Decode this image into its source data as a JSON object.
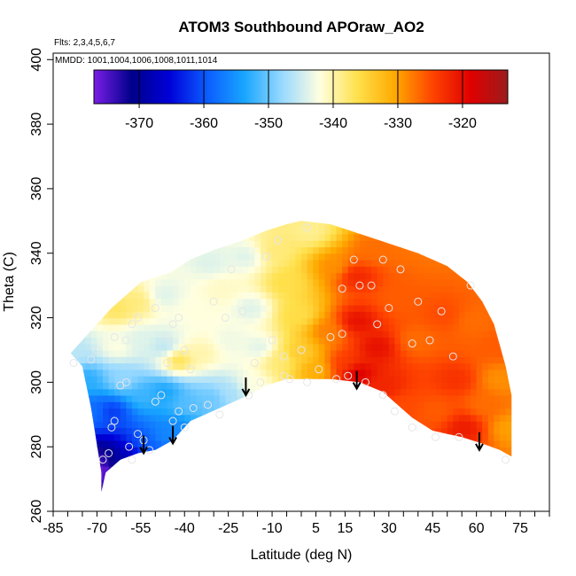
{
  "chart_data": {
    "type": "heatmap",
    "title": "ATOM3 Southbound APOraw_AO2",
    "flights_note": "Flts: 2,3,4,5,6,7",
    "dates_note": "MMDD: 1001,1004,1006,1008,1011,1014",
    "xlabel": "Latitude (deg N)",
    "ylabel": "Theta (C)",
    "xlim": [
      -85,
      85
    ],
    "ylim": [
      260,
      402
    ],
    "x_ticks": [
      -85,
      -70,
      -55,
      -40,
      -25,
      -10,
      5,
      15,
      30,
      45,
      60,
      75
    ],
    "x_minor_step": 5,
    "y_ticks": [
      260,
      280,
      300,
      320,
      340,
      360,
      380,
      400
    ],
    "colorbar": {
      "range": [
        -377,
        -313
      ],
      "ticks": [
        -370,
        -360,
        -350,
        -340,
        -330,
        -320
      ],
      "colors": [
        "#7a1ee6",
        "#00008b",
        "#0000d8",
        "#0b5cff",
        "#19a6ff",
        "#99d9ff",
        "#ffffe0",
        "#ffe14d",
        "#ffaa00",
        "#ff4400",
        "#e00000",
        "#9c1c1c"
      ]
    },
    "field_boundary": {
      "upper": [
        [
          -68.5,
          272
        ],
        [
          -72,
          292
        ],
        [
          -75,
          305
        ],
        [
          -79,
          309
        ],
        [
          -75,
          313
        ],
        [
          -70,
          318
        ],
        [
          -65,
          323
        ],
        [
          -60,
          327
        ],
        [
          -55,
          331
        ],
        [
          -45,
          334
        ],
        [
          -38,
          338
        ],
        [
          -30,
          341
        ],
        [
          -20,
          344
        ],
        [
          -12,
          347
        ],
        [
          -5,
          349
        ],
        [
          0,
          350
        ],
        [
          10,
          349
        ],
        [
          20,
          346
        ],
        [
          30,
          343
        ],
        [
          40,
          340
        ],
        [
          50,
          336
        ],
        [
          57,
          331
        ],
        [
          62,
          325
        ],
        [
          66,
          318
        ],
        [
          70,
          305
        ],
        [
          72,
          296
        ],
        [
          72,
          277
        ]
      ],
      "lower": [
        [
          -68.5,
          266
        ],
        [
          -67,
          272
        ],
        [
          -62,
          276
        ],
        [
          -56,
          278
        ],
        [
          -50,
          279
        ],
        [
          -44,
          282
        ],
        [
          -38,
          288
        ],
        [
          -28,
          292
        ],
        [
          -18,
          296
        ],
        [
          -12,
          299
        ],
        [
          -5,
          301
        ],
        [
          0,
          301
        ],
        [
          10,
          301
        ],
        [
          20,
          300
        ],
        [
          28,
          297
        ],
        [
          33,
          293
        ],
        [
          38,
          289
        ],
        [
          45,
          285
        ],
        [
          55,
          283
        ],
        [
          62,
          281
        ],
        [
          68,
          279
        ],
        [
          72,
          277
        ]
      ]
    },
    "field_samples": [
      {
        "lat": -70,
        "theta": 272,
        "v": -377
      },
      {
        "lat": -68,
        "theta": 276,
        "v": -374
      },
      {
        "lat": -64,
        "theta": 276,
        "v": -369
      },
      {
        "lat": -60,
        "theta": 277,
        "v": -367
      },
      {
        "lat": -56,
        "theta": 280,
        "v": -360
      },
      {
        "lat": -52,
        "theta": 279,
        "v": -359
      },
      {
        "lat": -48,
        "theta": 282,
        "v": -356
      },
      {
        "lat": -44,
        "theta": 285,
        "v": -356
      },
      {
        "lat": -72,
        "theta": 290,
        "v": -358
      },
      {
        "lat": -75,
        "theta": 300,
        "v": -353
      },
      {
        "lat": -79,
        "theta": 308,
        "v": -346
      },
      {
        "lat": -66,
        "theta": 290,
        "v": -362
      },
      {
        "lat": -62,
        "theta": 300,
        "v": -348
      },
      {
        "lat": -55,
        "theta": 295,
        "v": -352
      },
      {
        "lat": -48,
        "theta": 296,
        "v": -354
      },
      {
        "lat": -40,
        "theta": 292,
        "v": -351
      },
      {
        "lat": -32,
        "theta": 294,
        "v": -350
      },
      {
        "lat": -25,
        "theta": 296,
        "v": -347
      },
      {
        "lat": -18,
        "theta": 298,
        "v": -342
      },
      {
        "lat": -64,
        "theta": 310,
        "v": -342
      },
      {
        "lat": -56,
        "theta": 312,
        "v": -344
      },
      {
        "lat": -48,
        "theta": 310,
        "v": -346
      },
      {
        "lat": -43,
        "theta": 306,
        "v": -336
      },
      {
        "lat": -35,
        "theta": 308,
        "v": -340
      },
      {
        "lat": -25,
        "theta": 312,
        "v": -343
      },
      {
        "lat": -15,
        "theta": 310,
        "v": -344
      },
      {
        "lat": -8,
        "theta": 306,
        "v": -338
      },
      {
        "lat": -64,
        "theta": 322,
        "v": -337
      },
      {
        "lat": -57,
        "theta": 324,
        "v": -338
      },
      {
        "lat": -48,
        "theta": 326,
        "v": -344
      },
      {
        "lat": -38,
        "theta": 322,
        "v": -342
      },
      {
        "lat": -28,
        "theta": 328,
        "v": -341
      },
      {
        "lat": -18,
        "theta": 322,
        "v": -344
      },
      {
        "lat": -32,
        "theta": 336,
        "v": -344
      },
      {
        "lat": -20,
        "theta": 338,
        "v": -344
      },
      {
        "lat": -10,
        "theta": 340,
        "v": -338
      },
      {
        "lat": -6,
        "theta": 330,
        "v": -336
      },
      {
        "lat": -2,
        "theta": 320,
        "v": -336
      },
      {
        "lat": -2,
        "theta": 308,
        "v": -334
      },
      {
        "lat": 2,
        "theta": 346,
        "v": -339
      },
      {
        "lat": 4,
        "theta": 303,
        "v": -331
      },
      {
        "lat": 8,
        "theta": 315,
        "v": -328
      },
      {
        "lat": 10,
        "theta": 335,
        "v": -329
      },
      {
        "lat": 14,
        "theta": 305,
        "v": -324
      },
      {
        "lat": 18,
        "theta": 302,
        "v": -318
      },
      {
        "lat": 18,
        "theta": 318,
        "v": -320
      },
      {
        "lat": 18,
        "theta": 332,
        "v": -322
      },
      {
        "lat": 24,
        "theta": 340,
        "v": -327
      },
      {
        "lat": 25,
        "theta": 310,
        "v": -320
      },
      {
        "lat": 28,
        "theta": 298,
        "v": -322
      },
      {
        "lat": 32,
        "theta": 325,
        "v": -326
      },
      {
        "lat": 35,
        "theta": 292,
        "v": -325
      },
      {
        "lat": 38,
        "theta": 312,
        "v": -327
      },
      {
        "lat": 45,
        "theta": 290,
        "v": -326
      },
      {
        "lat": 48,
        "theta": 320,
        "v": -325
      },
      {
        "lat": 52,
        "theta": 300,
        "v": -323
      },
      {
        "lat": 55,
        "theta": 285,
        "v": -321
      },
      {
        "lat": 58,
        "theta": 318,
        "v": -327
      },
      {
        "lat": 62,
        "theta": 292,
        "v": -327
      },
      {
        "lat": 67,
        "theta": 300,
        "v": -329
      },
      {
        "lat": 70,
        "theta": 285,
        "v": -330
      },
      {
        "lat": 65,
        "theta": 310,
        "v": -326
      }
    ],
    "observations": [
      [
        -68,
        276
      ],
      [
        -66,
        278
      ],
      [
        -65,
        286
      ],
      [
        -64,
        288
      ],
      [
        -62,
        299
      ],
      [
        -60,
        300
      ],
      [
        -59,
        280
      ],
      [
        -58,
        276
      ],
      [
        -56,
        284
      ],
      [
        -54,
        282
      ],
      [
        -52,
        279
      ],
      [
        -50,
        294
      ],
      [
        -48,
        296
      ],
      [
        -46,
        306
      ],
      [
        -44,
        288
      ],
      [
        -42,
        291
      ],
      [
        -40,
        286
      ],
      [
        -37,
        292
      ],
      [
        -32,
        293
      ],
      [
        -28,
        290
      ],
      [
        -18,
        296
      ],
      [
        -14,
        300
      ],
      [
        -6,
        302
      ],
      [
        -4,
        301
      ],
      [
        2,
        300
      ],
      [
        12,
        301
      ],
      [
        16,
        302
      ],
      [
        22,
        300
      ],
      [
        28,
        296
      ],
      [
        32,
        291
      ],
      [
        38,
        286
      ],
      [
        46,
        283
      ],
      [
        54,
        283
      ],
      [
        70,
        276
      ],
      [
        -78,
        306
      ],
      [
        -72,
        307
      ],
      [
        -70,
        310
      ],
      [
        -64,
        314
      ],
      [
        -60,
        313
      ],
      [
        -58,
        318
      ],
      [
        -56,
        320
      ],
      [
        -50,
        323
      ],
      [
        -46,
        314
      ],
      [
        -44,
        318
      ],
      [
        -42,
        320
      ],
      [
        -40,
        310
      ],
      [
        -38,
        304
      ],
      [
        -30,
        325
      ],
      [
        -26,
        320
      ],
      [
        -20,
        322
      ],
      [
        -16,
        306
      ],
      [
        -10,
        313
      ],
      [
        -6,
        308
      ],
      [
        0,
        310
      ],
      [
        6,
        304
      ],
      [
        10,
        314
      ],
      [
        14,
        315
      ],
      [
        14,
        329
      ],
      [
        20,
        330
      ],
      [
        24,
        330
      ],
      [
        26,
        318
      ],
      [
        30,
        323
      ],
      [
        34,
        335
      ],
      [
        38,
        312
      ],
      [
        40,
        325
      ],
      [
        44,
        313
      ],
      [
        48,
        322
      ],
      [
        52,
        308
      ],
      [
        58,
        330
      ],
      [
        -24,
        335
      ],
      [
        -12,
        339
      ],
      [
        -8,
        344
      ],
      [
        2,
        348
      ],
      [
        18,
        338
      ],
      [
        28,
        338
      ]
    ],
    "arrows": [
      [
        -54,
        278
      ],
      [
        -44,
        281
      ],
      [
        -19,
        296
      ],
      [
        19,
        298
      ],
      [
        61,
        279
      ]
    ]
  }
}
